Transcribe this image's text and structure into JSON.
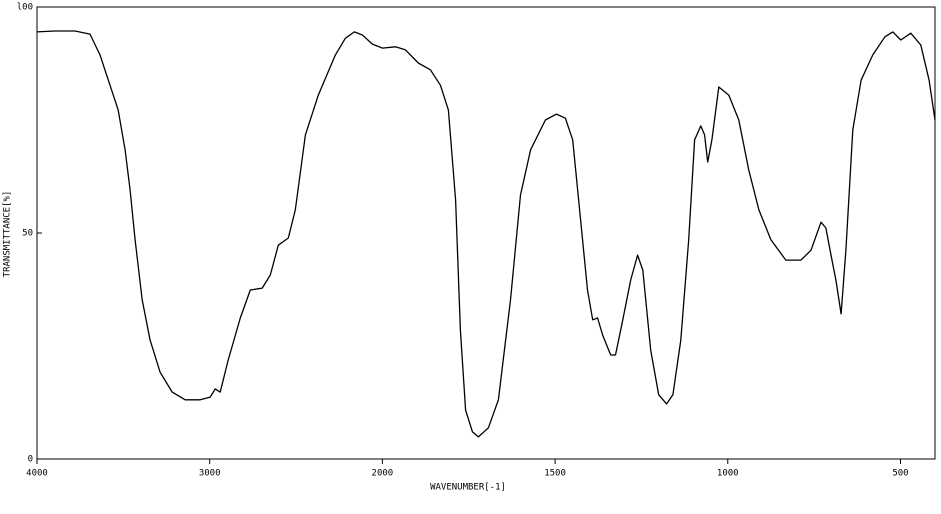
{
  "chart_data": {
    "type": "line",
    "y_label": "TRANSMITTANCE[%]",
    "x_label": "WAVENUMBER[-1]",
    "xlim": [
      4000,
      400
    ],
    "ylim": [
      0,
      100
    ],
    "x_scale_break": 2000,
    "xticks": [
      4000,
      3000,
      2000,
      1500,
      1000,
      500
    ],
    "yticks": [
      0,
      50,
      {
        "value": 100,
        "label": "l00"
      }
    ],
    "color": "#000000",
    "x": [
      4000,
      3896,
      3780,
      3693,
      3635,
      3577,
      3530,
      3490,
      3461,
      3432,
      3391,
      3345,
      3287,
      3217,
      3142,
      3055,
      2997,
      2968,
      2939,
      2893,
      2823,
      2765,
      2696,
      2649,
      2603,
      2545,
      2504,
      2446,
      2371,
      2272,
      2214,
      2162,
      2116,
      2058,
      2000,
      1962,
      1933,
      1896,
      1861,
      1832,
      1809,
      1788,
      1774,
      1759,
      1739,
      1722,
      1693,
      1664,
      1629,
      1600,
      1571,
      1528,
      1496,
      1470,
      1449,
      1426,
      1406,
      1391,
      1377,
      1362,
      1339,
      1325,
      1304,
      1281,
      1261,
      1246,
      1223,
      1200,
      1177,
      1159,
      1136,
      1113,
      1096,
      1078,
      1067,
      1058,
      1046,
      1026,
      997,
      968,
      939,
      910,
      875,
      832,
      788,
      759,
      730,
      716,
      701,
      687,
      672,
      658,
      638,
      614,
      580,
      545,
      522,
      499,
      470,
      441,
      417,
      400
    ],
    "values": [
      94.5,
      94.7,
      94.7,
      94.0,
      89.4,
      82.7,
      77.2,
      68.4,
      59.5,
      48.5,
      35.2,
      26.3,
      19.2,
      14.8,
      13.1,
      13.1,
      13.7,
      15.5,
      14.8,
      21.9,
      31.2,
      37.4,
      37.8,
      40.7,
      47.3,
      48.9,
      55.1,
      71.7,
      80.5,
      89.4,
      93.1,
      94.5,
      93.8,
      91.8,
      90.9,
      91.2,
      90.5,
      87.6,
      86.1,
      82.7,
      77.2,
      57.3,
      28.5,
      10.8,
      6.0,
      4.9,
      6.9,
      13.1,
      35.2,
      58.4,
      68.4,
      75.0,
      76.3,
      75.4,
      70.6,
      52.9,
      37.4,
      30.8,
      31.2,
      27.4,
      23.0,
      23.0,
      30.8,
      39.6,
      45.1,
      41.8,
      24.1,
      14.2,
      12.2,
      14.2,
      26.3,
      48.5,
      70.6,
      73.7,
      71.7,
      65.7,
      70.6,
      82.3,
      80.5,
      75.0,
      63.9,
      55.1,
      48.5,
      44.0,
      44.0,
      46.2,
      52.4,
      51.1,
      45.1,
      39.6,
      32.1,
      46.2,
      72.8,
      83.8,
      89.4,
      93.4,
      94.5,
      92.7,
      94.2,
      91.6,
      83.8,
      75.0
    ]
  }
}
